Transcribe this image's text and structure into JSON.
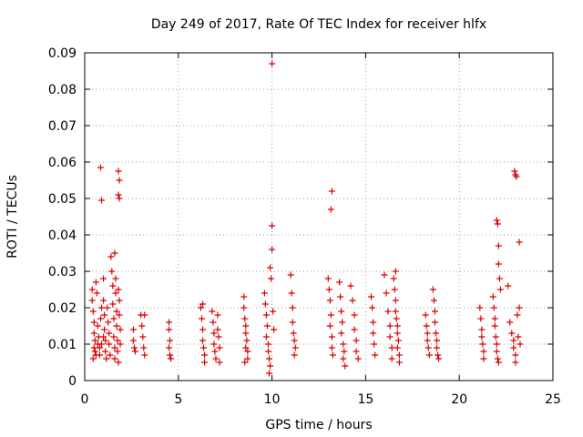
{
  "chart_data": {
    "type": "scatter",
    "title": "Day 249 of 2017, Rate Of TEC Index for receiver hlfx",
    "xlabel": "GPS time / hours",
    "ylabel": "ROTI / TECUs",
    "xlim": [
      0,
      25
    ],
    "ylim": [
      0,
      0.09
    ],
    "x_ticks": [
      0,
      5,
      10,
      15,
      20,
      25
    ],
    "x_tick_labels": [
      "0",
      "5",
      "10",
      "15",
      "20",
      "25"
    ],
    "y_ticks": [
      0,
      0.01,
      0.02,
      0.03,
      0.04,
      0.05,
      0.06,
      0.07,
      0.08,
      0.09
    ],
    "y_tick_labels": [
      "0",
      "0.01",
      "0.02",
      "0.03",
      "0.04",
      "0.05",
      "0.06",
      "0.07",
      "0.08",
      "0.09"
    ],
    "grid": true,
    "marker": "+",
    "marker_color": "#dd0000",
    "series": [
      {
        "name": "ROTI",
        "points": [
          [
            0.4,
            0.025
          ],
          [
            0.4,
            0.022
          ],
          [
            0.45,
            0.019
          ],
          [
            0.5,
            0.016
          ],
          [
            0.5,
            0.013
          ],
          [
            0.55,
            0.011
          ],
          [
            0.5,
            0.009
          ],
          [
            0.55,
            0.008
          ],
          [
            0.6,
            0.007
          ],
          [
            0.45,
            0.006
          ],
          [
            0.6,
            0.027
          ],
          [
            0.65,
            0.024
          ],
          [
            0.7,
            0.015
          ],
          [
            0.7,
            0.01
          ],
          [
            0.75,
            0.012
          ],
          [
            0.8,
            0.009
          ],
          [
            0.8,
            0.007
          ],
          [
            0.85,
            0.017
          ],
          [
            0.9,
            0.02
          ],
          [
            0.9,
            0.01
          ],
          [
            0.85,
            0.0585
          ],
          [
            0.9,
            0.0495
          ],
          [
            1.0,
            0.028
          ],
          [
            1.0,
            0.022
          ],
          [
            1.05,
            0.018
          ],
          [
            1.05,
            0.014
          ],
          [
            1.1,
            0.011
          ],
          [
            1.1,
            0.008
          ],
          [
            1.15,
            0.006
          ],
          [
            1.0,
            0.012
          ],
          [
            1.2,
            0.02
          ],
          [
            1.25,
            0.016
          ],
          [
            1.3,
            0.013
          ],
          [
            1.3,
            0.01
          ],
          [
            1.35,
            0.007
          ],
          [
            1.4,
            0.034
          ],
          [
            1.45,
            0.03
          ],
          [
            1.5,
            0.026
          ],
          [
            1.5,
            0.021
          ],
          [
            1.55,
            0.017
          ],
          [
            1.55,
            0.012
          ],
          [
            1.6,
            0.009
          ],
          [
            1.6,
            0.006
          ],
          [
            1.6,
            0.035
          ],
          [
            1.65,
            0.028
          ],
          [
            1.65,
            0.024
          ],
          [
            1.7,
            0.019
          ],
          [
            1.7,
            0.015
          ],
          [
            1.75,
            0.011
          ],
          [
            1.75,
            0.008
          ],
          [
            1.8,
            0.005
          ],
          [
            1.8,
            0.025
          ],
          [
            1.85,
            0.022
          ],
          [
            1.85,
            0.018
          ],
          [
            1.9,
            0.014
          ],
          [
            1.9,
            0.01
          ],
          [
            1.8,
            0.0575
          ],
          [
            1.85,
            0.055
          ],
          [
            1.8,
            0.051
          ],
          [
            1.85,
            0.05
          ],
          [
            2.6,
            0.014
          ],
          [
            2.6,
            0.011
          ],
          [
            2.65,
            0.009
          ],
          [
            2.7,
            0.008
          ],
          [
            3.0,
            0.018
          ],
          [
            3.05,
            0.015
          ],
          [
            3.1,
            0.012
          ],
          [
            3.15,
            0.009
          ],
          [
            3.2,
            0.007
          ],
          [
            3.2,
            0.018
          ],
          [
            4.5,
            0.016
          ],
          [
            4.5,
            0.014
          ],
          [
            4.55,
            0.011
          ],
          [
            4.5,
            0.009
          ],
          [
            4.55,
            0.007
          ],
          [
            4.6,
            0.006
          ],
          [
            6.2,
            0.02
          ],
          [
            6.25,
            0.017
          ],
          [
            6.3,
            0.014
          ],
          [
            6.3,
            0.011
          ],
          [
            6.35,
            0.009
          ],
          [
            6.4,
            0.007
          ],
          [
            6.4,
            0.005
          ],
          [
            6.3,
            0.021
          ],
          [
            6.8,
            0.019
          ],
          [
            6.85,
            0.016
          ],
          [
            6.9,
            0.013
          ],
          [
            6.9,
            0.01
          ],
          [
            6.95,
            0.008
          ],
          [
            7.0,
            0.006
          ],
          [
            7.1,
            0.018
          ],
          [
            7.1,
            0.014
          ],
          [
            7.15,
            0.012
          ],
          [
            7.2,
            0.009
          ],
          [
            7.2,
            0.005
          ],
          [
            8.5,
            0.023
          ],
          [
            8.5,
            0.02
          ],
          [
            8.55,
            0.017
          ],
          [
            8.6,
            0.015
          ],
          [
            8.6,
            0.013
          ],
          [
            8.65,
            0.011
          ],
          [
            8.6,
            0.009
          ],
          [
            8.7,
            0.008
          ],
          [
            8.7,
            0.006
          ],
          [
            8.55,
            0.005
          ],
          [
            9.6,
            0.024
          ],
          [
            9.65,
            0.021
          ],
          [
            9.7,
            0.018
          ],
          [
            9.75,
            0.015
          ],
          [
            9.7,
            0.012
          ],
          [
            9.8,
            0.01
          ],
          [
            9.8,
            0.008
          ],
          [
            9.85,
            0.006
          ],
          [
            9.9,
            0.004
          ],
          [
            9.85,
            0.002
          ],
          [
            9.9,
            0.031
          ],
          [
            9.95,
            0.028
          ],
          [
            10.0,
            0.036
          ],
          [
            10.0,
            0.0425
          ],
          [
            10.0,
            0.087
          ],
          [
            10.05,
            0.019
          ],
          [
            10.1,
            0.014
          ],
          [
            11.0,
            0.029
          ],
          [
            11.05,
            0.024
          ],
          [
            11.1,
            0.02
          ],
          [
            11.1,
            0.016
          ],
          [
            11.15,
            0.013
          ],
          [
            11.2,
            0.011
          ],
          [
            11.25,
            0.009
          ],
          [
            11.2,
            0.007
          ],
          [
            13.0,
            0.028
          ],
          [
            13.05,
            0.025
          ],
          [
            13.1,
            0.022
          ],
          [
            13.15,
            0.018
          ],
          [
            13.1,
            0.015
          ],
          [
            13.2,
            0.012
          ],
          [
            13.2,
            0.009
          ],
          [
            13.25,
            0.007
          ],
          [
            13.2,
            0.052
          ],
          [
            13.15,
            0.047
          ],
          [
            13.6,
            0.027
          ],
          [
            13.65,
            0.023
          ],
          [
            13.7,
            0.019
          ],
          [
            13.75,
            0.016
          ],
          [
            13.7,
            0.013
          ],
          [
            13.8,
            0.01
          ],
          [
            13.85,
            0.008
          ],
          [
            13.8,
            0.006
          ],
          [
            13.9,
            0.004
          ],
          [
            14.2,
            0.026
          ],
          [
            14.3,
            0.022
          ],
          [
            14.4,
            0.018
          ],
          [
            14.4,
            0.014
          ],
          [
            14.5,
            0.011
          ],
          [
            14.5,
            0.008
          ],
          [
            14.6,
            0.006
          ],
          [
            15.3,
            0.023
          ],
          [
            15.35,
            0.02
          ],
          [
            15.4,
            0.016
          ],
          [
            15.4,
            0.013
          ],
          [
            15.45,
            0.01
          ],
          [
            15.5,
            0.007
          ],
          [
            16.0,
            0.029
          ],
          [
            16.1,
            0.024
          ],
          [
            16.2,
            0.019
          ],
          [
            16.3,
            0.015
          ],
          [
            16.3,
            0.012
          ],
          [
            16.4,
            0.009
          ],
          [
            16.4,
            0.006
          ],
          [
            16.5,
            0.028
          ],
          [
            16.55,
            0.025
          ],
          [
            16.6,
            0.022
          ],
          [
            16.6,
            0.019
          ],
          [
            16.65,
            0.017
          ],
          [
            16.7,
            0.015
          ],
          [
            16.7,
            0.013
          ],
          [
            16.75,
            0.011
          ],
          [
            16.7,
            0.009
          ],
          [
            16.8,
            0.007
          ],
          [
            16.8,
            0.005
          ],
          [
            16.6,
            0.03
          ],
          [
            18.2,
            0.018
          ],
          [
            18.25,
            0.015
          ],
          [
            18.3,
            0.013
          ],
          [
            18.3,
            0.011
          ],
          [
            18.35,
            0.009
          ],
          [
            18.4,
            0.007
          ],
          [
            18.6,
            0.025
          ],
          [
            18.65,
            0.022
          ],
          [
            18.7,
            0.019
          ],
          [
            18.7,
            0.016
          ],
          [
            18.75,
            0.013
          ],
          [
            18.8,
            0.011
          ],
          [
            18.8,
            0.009
          ],
          [
            18.85,
            0.007
          ],
          [
            18.9,
            0.006
          ],
          [
            21.1,
            0.02
          ],
          [
            21.15,
            0.017
          ],
          [
            21.2,
            0.014
          ],
          [
            21.2,
            0.012
          ],
          [
            21.25,
            0.01
          ],
          [
            21.3,
            0.008
          ],
          [
            21.3,
            0.006
          ],
          [
            21.8,
            0.023
          ],
          [
            21.85,
            0.02
          ],
          [
            21.9,
            0.017
          ],
          [
            21.9,
            0.015
          ],
          [
            21.95,
            0.012
          ],
          [
            22.0,
            0.01
          ],
          [
            22.0,
            0.008
          ],
          [
            22.05,
            0.006
          ],
          [
            22.1,
            0.005
          ],
          [
            22.0,
            0.044
          ],
          [
            22.05,
            0.043
          ],
          [
            22.1,
            0.037
          ],
          [
            22.1,
            0.032
          ],
          [
            22.15,
            0.028
          ],
          [
            22.2,
            0.025
          ],
          [
            22.6,
            0.026
          ],
          [
            22.7,
            0.016
          ],
          [
            22.8,
            0.013
          ],
          [
            22.9,
            0.011
          ],
          [
            22.9,
            0.009
          ],
          [
            23.0,
            0.007
          ],
          [
            23.0,
            0.005
          ],
          [
            22.95,
            0.0575
          ],
          [
            23.0,
            0.0565
          ],
          [
            23.05,
            0.056
          ],
          [
            23.1,
            0.018
          ],
          [
            23.15,
            0.012
          ],
          [
            23.2,
            0.038
          ],
          [
            23.2,
            0.02
          ],
          [
            23.25,
            0.01
          ]
        ]
      }
    ]
  }
}
